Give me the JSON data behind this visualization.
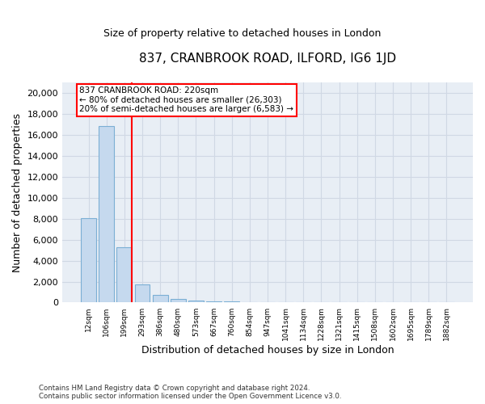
{
  "title": "837, CRANBROOK ROAD, ILFORD, IG6 1JD",
  "subtitle": "Size of property relative to detached houses in London",
  "xlabel": "Distribution of detached houses by size in London",
  "ylabel": "Number of detached properties",
  "bar_color": "#c5d9ee",
  "bar_edge_color": "#7bafd4",
  "background_color": "#e8eef5",
  "grid_color": "#d0d8e4",
  "annotation_text": "837 CRANBROOK ROAD: 220sqm\n← 80% of detached houses are smaller (26,303)\n20% of semi-detached houses are larger (6,583) →",
  "vline_color": "red",
  "categories": [
    "12sqm",
    "106sqm",
    "199sqm",
    "293sqm",
    "386sqm",
    "480sqm",
    "573sqm",
    "667sqm",
    "760sqm",
    "854sqm",
    "947sqm",
    "1041sqm",
    "1134sqm",
    "1228sqm",
    "1321sqm",
    "1415sqm",
    "1508sqm",
    "1602sqm",
    "1695sqm",
    "1789sqm",
    "1882sqm"
  ],
  "values": [
    8050,
    16800,
    5300,
    1700,
    700,
    350,
    220,
    130,
    90,
    65,
    50,
    38,
    28,
    20,
    15,
    12,
    10,
    8,
    6,
    5,
    4
  ],
  "ylim": [
    0,
    21000
  ],
  "yticks": [
    0,
    2000,
    4000,
    6000,
    8000,
    10000,
    12000,
    14000,
    16000,
    18000,
    20000
  ],
  "footnote": "Contains HM Land Registry data © Crown copyright and database right 2024.\nContains public sector information licensed under the Open Government Licence v3.0.",
  "fig_width": 6.0,
  "fig_height": 5.0,
  "dpi": 100
}
